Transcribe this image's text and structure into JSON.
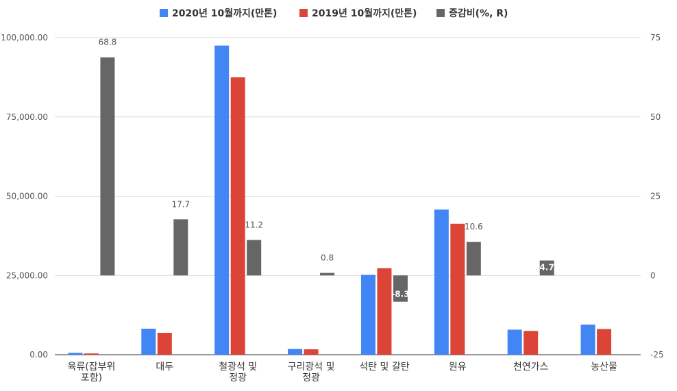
{
  "chart_data": {
    "type": "bar",
    "categories": [
      [
        "육류(잡부위",
        "포함)"
      ],
      [
        "대두"
      ],
      [
        "철광석 및",
        "정광"
      ],
      [
        "구리광석 및",
        "정광"
      ],
      [
        "석탄 및 갈탄"
      ],
      [
        "원유"
      ],
      [
        "천연가스"
      ],
      [
        "농산물"
      ]
    ],
    "series": [
      {
        "name": "2020년 10월까지(만톤)",
        "axis": "left",
        "color": "#4285f4",
        "values": [
          600,
          8200,
          97500,
          1800,
          25200,
          45800,
          7900,
          9500
        ]
      },
      {
        "name": "2019년 10월까지(만톤)",
        "axis": "left",
        "color": "#db4437",
        "values": [
          400,
          6900,
          87500,
          1700,
          27300,
          41300,
          7500,
          8100
        ]
      },
      {
        "name": "증감비(%, R)",
        "axis": "right",
        "color": "#666666",
        "values": [
          68.8,
          17.7,
          11.2,
          0.8,
          -8.3,
          null,
          4.7,
          null
        ],
        "labels": [
          "68.8",
          "17.7",
          "11.2",
          "0.8",
          "-8.3",
          "10.6",
          "4.7",
          ""
        ]
      }
    ],
    "extra_bar": {
      "category_index": 5,
      "value": 10.6
    },
    "y_left": {
      "min": 0,
      "max": 100000,
      "ticks": [
        "0.00",
        "25,000.00",
        "50,000.00",
        "75,000.00",
        "100,000.00"
      ]
    },
    "y_right": {
      "min": -25,
      "max": 75,
      "ticks": [
        "-25",
        "0",
        "25",
        "50",
        "75"
      ]
    },
    "grid": true,
    "legend": "top-center"
  }
}
